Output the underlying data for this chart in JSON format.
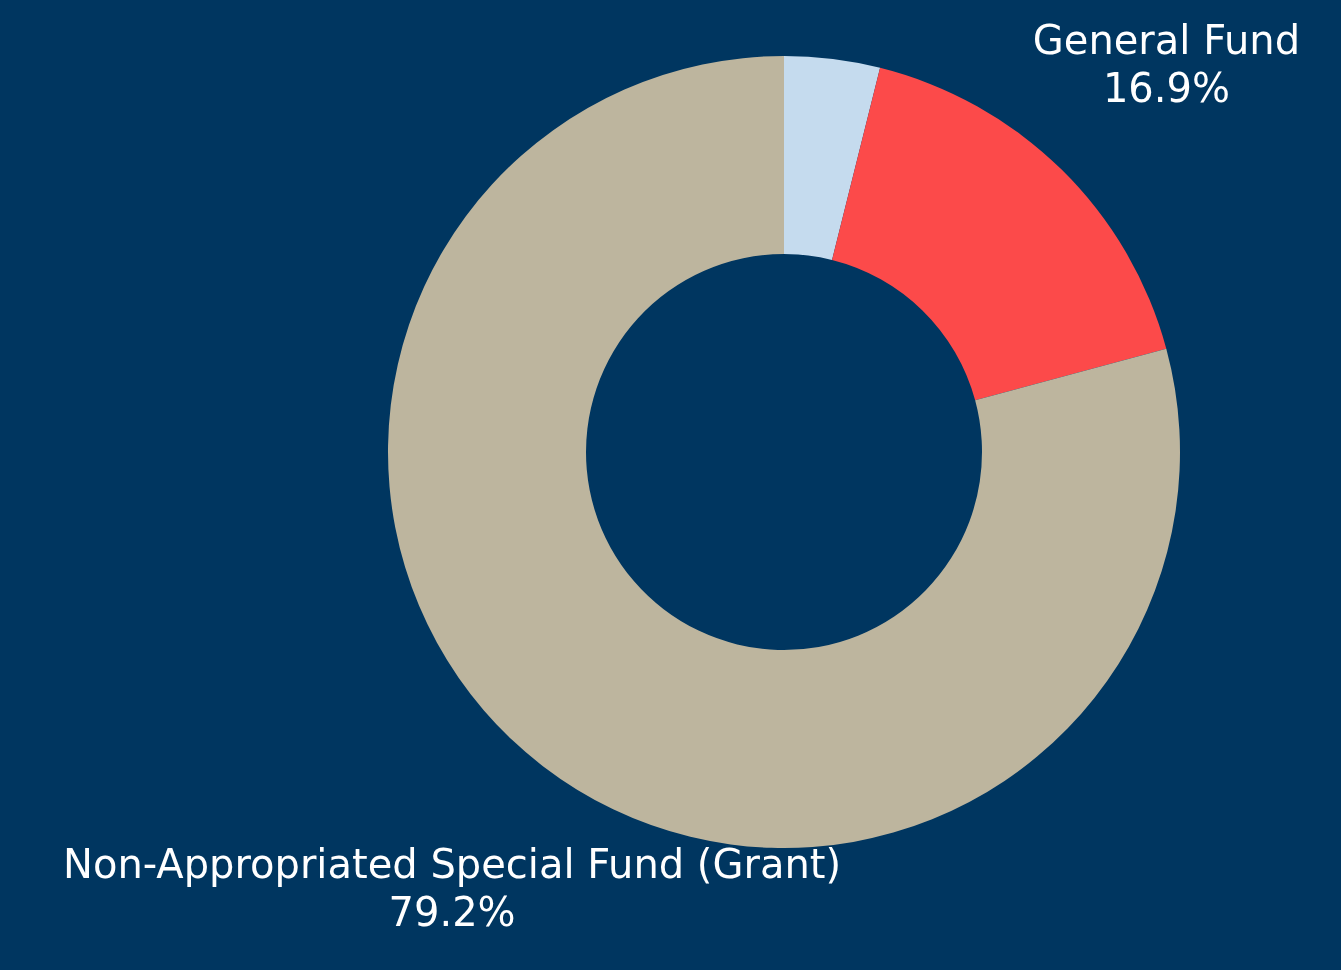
{
  "chart_data": {
    "type": "donut",
    "categories": [
      null,
      "General Fund",
      "Non-Appropriated Special Fund (Grant)"
    ],
    "values": [
      3.9,
      16.9,
      79.2
    ],
    "colors": [
      "#c5dbee",
      "#fc4a4a",
      "#bdb59e"
    ],
    "value_labels": [
      null,
      "16.9%",
      "79.2%"
    ],
    "legend": false
  }
}
